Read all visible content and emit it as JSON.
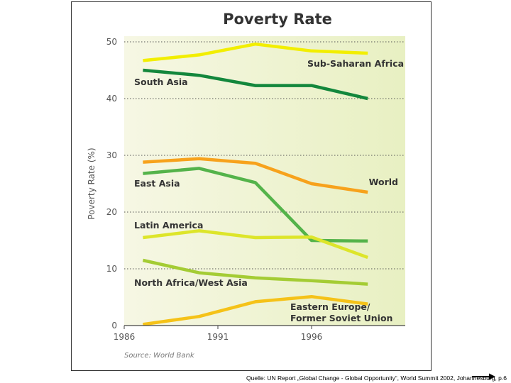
{
  "chart_data": {
    "type": "line",
    "title": "Poverty Rate",
    "ylabel": "Poverty Rate (%)",
    "xlabel": "",
    "source": "Source: World Bank",
    "ylim": [
      0,
      50
    ],
    "xlim": [
      1986,
      2001
    ],
    "xticks": [
      "1986",
      "1991",
      "1996"
    ],
    "yticks": [
      "0",
      "10",
      "20",
      "30",
      "40",
      "50"
    ],
    "grid": "dotted horizontal",
    "series": [
      {
        "name": "Sub-Saharan Africa",
        "label": "Sub-Saharan Africa",
        "color": "#f2ee00",
        "x": [
          1987,
          1990,
          1993,
          1996,
          1999
        ],
        "y": [
          46.7,
          47.7,
          49.6,
          48.4,
          48.0
        ]
      },
      {
        "name": "South Asia",
        "label": "South Asia",
        "color": "#13873c",
        "x": [
          1987,
          1990,
          1993,
          1996,
          1999
        ],
        "y": [
          45.0,
          44.1,
          42.3,
          42.3,
          40.0
        ]
      },
      {
        "name": "World",
        "label": "World",
        "color": "#f7a21c",
        "x": [
          1987,
          1990,
          1993,
          1996,
          1999
        ],
        "y": [
          28.8,
          29.4,
          28.6,
          25.0,
          23.5
        ]
      },
      {
        "name": "East Asia",
        "label": "East Asia",
        "color": "#54b34a",
        "x": [
          1987,
          1990,
          1993,
          1996,
          1999
        ],
        "y": [
          26.8,
          27.7,
          25.2,
          15.0,
          14.9
        ]
      },
      {
        "name": "Latin America",
        "label": "Latin America",
        "color": "#dde52a",
        "x": [
          1987,
          1990,
          1993,
          1996,
          1999
        ],
        "y": [
          15.5,
          16.7,
          15.5,
          15.6,
          12.0
        ]
      },
      {
        "name": "North Africa/West Asia",
        "label": "North Africa/West Asia",
        "color": "#a4cc34",
        "x": [
          1987,
          1990,
          1993,
          1996,
          1999
        ],
        "y": [
          11.5,
          9.3,
          8.4,
          7.9,
          7.3
        ]
      },
      {
        "name": "Eastern Europe/Former Soviet Union",
        "label_lines": [
          "Eastern Europe/",
          "Former Soviet Union"
        ],
        "color": "#f5c218",
        "x": [
          1987,
          1990,
          1993,
          1996,
          1999
        ],
        "y": [
          0.2,
          1.6,
          4.2,
          5.1,
          3.8
        ]
      }
    ]
  },
  "footer": {
    "caption": "Quelle: UN Report „Global Change - Global Opportunity“, World Summit 2002, Johannesburg,  p.6"
  },
  "colors": {
    "plot_bg_start": "#f6f7e4",
    "plot_bg_end": "#e8f0c2",
    "axis_text": "#555555",
    "label_text": "#333333"
  }
}
